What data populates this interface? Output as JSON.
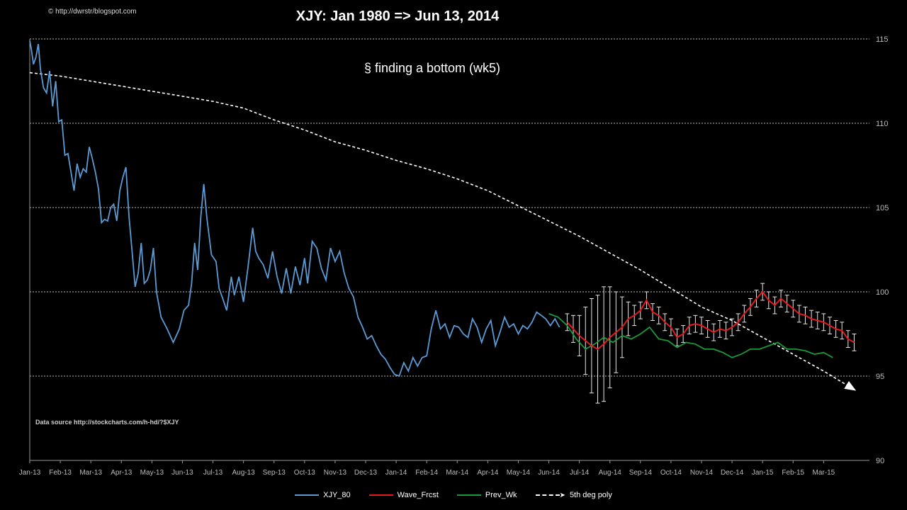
{
  "copyright": "© http://dwrstr/blogspot.com",
  "source_note": "Data source http://stockcharts.com/h-hd/?$XJY",
  "chart_data": {
    "type": "line",
    "title": "XJY: Jan 1980  => Jun 13, 2014",
    "subtitle": "§ finding a bottom  (wk5)",
    "ylim": [
      90,
      115
    ],
    "yticks": [
      90,
      95,
      100,
      105,
      110,
      115
    ],
    "grid": "horizontal dashed",
    "legend_position": "bottom",
    "x_labels": [
      "Jan-13",
      "Feb-13",
      "Mar-13",
      "Apr-13",
      "May-13",
      "Jun-13",
      "Jul-13",
      "Aug-13",
      "Sep-13",
      "Oct-13",
      "Nov-13",
      "Dec-13",
      "Jan-14",
      "Feb-14",
      "Mar-14",
      "Apr-14",
      "May-14",
      "Jun-14",
      "Jul-14",
      "Aug-14",
      "Sep-14",
      "Oct-14",
      "Nov-14",
      "Dec-14",
      "Jan-15",
      "Feb-15",
      "Mar-15"
    ],
    "x_label_months": [
      0,
      1,
      2,
      3,
      4,
      5,
      6,
      7,
      8,
      9,
      10,
      11,
      12,
      13,
      14,
      15,
      16,
      17,
      18,
      19,
      20,
      21,
      22,
      23,
      24,
      25,
      26
    ],
    "x_note": "x values are months since Jan-13 (0 = Jan-13)",
    "xlim": [
      0,
      27.5
    ],
    "series": [
      {
        "name": "XJY_80",
        "color": "#5b9bd5",
        "x": [
          0.0,
          0.05,
          0.12,
          0.2,
          0.28,
          0.35,
          0.45,
          0.55,
          0.65,
          0.75,
          0.85,
          0.95,
          1.05,
          1.15,
          1.25,
          1.35,
          1.45,
          1.55,
          1.65,
          1.75,
          1.85,
          1.95,
          2.05,
          2.15,
          2.25,
          2.35,
          2.45,
          2.55,
          2.65,
          2.75,
          2.85,
          2.95,
          3.05,
          3.15,
          3.25,
          3.35,
          3.45,
          3.55,
          3.65,
          3.75,
          3.85,
          3.95,
          4.05,
          4.15,
          4.3,
          4.5,
          4.7,
          4.9,
          5.05,
          5.2,
          5.3,
          5.4,
          5.5,
          5.6,
          5.7,
          5.8,
          5.95,
          6.1,
          6.2,
          6.3,
          6.45,
          6.6,
          6.7,
          6.85,
          7.0,
          7.15,
          7.3,
          7.4,
          7.5,
          7.65,
          7.8,
          7.95,
          8.1,
          8.25,
          8.4,
          8.55,
          8.7,
          8.85,
          9.0,
          9.1,
          9.25,
          9.4,
          9.55,
          9.7,
          9.85,
          10.0,
          10.15,
          10.3,
          10.45,
          10.6,
          10.75,
          10.9,
          11.05,
          11.2,
          11.35,
          11.5,
          11.65,
          11.8,
          11.95,
          12.1,
          12.25,
          12.4,
          12.55,
          12.7,
          12.85,
          13.0,
          13.15,
          13.3,
          13.45,
          13.6,
          13.75,
          13.9,
          14.05,
          14.2,
          14.35,
          14.5,
          14.65,
          14.8,
          14.95,
          15.1,
          15.25,
          15.4,
          15.55,
          15.7,
          15.85,
          16.0,
          16.15,
          16.3,
          16.45,
          16.6,
          16.75,
          16.9,
          17.05,
          17.2,
          17.35
        ],
        "values": [
          114.9,
          114.4,
          113.5,
          113.9,
          114.7,
          113.2,
          112.1,
          111.8,
          113.1,
          111.0,
          112.5,
          110.1,
          110.2,
          108.1,
          108.2,
          107.1,
          106.0,
          107.6,
          106.8,
          107.3,
          107.1,
          108.6,
          107.9,
          107.1,
          106.1,
          104.1,
          104.3,
          104.2,
          105.0,
          105.2,
          104.2,
          106.0,
          106.8,
          107.4,
          104.5,
          102.4,
          100.3,
          101.1,
          102.9,
          100.5,
          100.7,
          101.3,
          102.6,
          100.0,
          98.5,
          97.8,
          97.0,
          97.8,
          98.9,
          99.2,
          100.5,
          102.9,
          101.3,
          104.4,
          106.4,
          104.4,
          102.2,
          101.8,
          100.2,
          99.7,
          98.9,
          100.9,
          99.8,
          100.9,
          99.4,
          101.5,
          103.8,
          102.4,
          102.0,
          101.6,
          100.8,
          102.4,
          100.9,
          99.9,
          101.4,
          99.9,
          101.5,
          100.4,
          102.0,
          100.5,
          103.0,
          102.6,
          101.4,
          100.7,
          102.6,
          101.8,
          102.4,
          101.1,
          100.2,
          99.7,
          98.5,
          97.9,
          97.2,
          97.4,
          96.8,
          96.3,
          96.0,
          95.5,
          95.1,
          95.0,
          95.8,
          95.3,
          96.1,
          95.6,
          96.1,
          96.2,
          97.8,
          98.9,
          97.8,
          98.1,
          97.3,
          98.0,
          97.9,
          97.5,
          97.3,
          98.4,
          97.9,
          97.0,
          97.8,
          98.3,
          96.8,
          97.6,
          98.5,
          97.9,
          98.1,
          97.5,
          98.0,
          97.8,
          98.2,
          98.8,
          98.6,
          98.4,
          98.0,
          98.4,
          97.9
        ]
      },
      {
        "name": "Wave_Frcst",
        "color": "#e31a1c",
        "x": [
          17.6,
          17.8,
          18.0,
          18.2,
          18.4,
          18.6,
          18.8,
          19.0,
          19.2,
          19.4,
          19.6,
          19.8,
          20.0,
          20.2,
          20.4,
          20.6,
          20.8,
          21.0,
          21.2,
          21.4,
          21.6,
          21.8,
          22.0,
          22.2,
          22.4,
          22.6,
          22.8,
          23.0,
          23.2,
          23.4,
          23.6,
          23.8,
          24.0,
          24.2,
          24.4,
          24.6,
          24.8,
          25.0,
          25.2,
          25.4,
          25.6,
          25.8,
          26.0,
          26.2,
          26.4,
          26.6,
          26.8,
          27.0
        ],
        "values": [
          98.2,
          97.8,
          97.4,
          97.1,
          96.8,
          96.6,
          96.9,
          97.3,
          97.6,
          97.9,
          98.4,
          98.6,
          98.9,
          99.5,
          98.8,
          98.6,
          98.2,
          97.9,
          97.3,
          97.5,
          98.0,
          98.1,
          98.0,
          97.8,
          97.6,
          97.8,
          97.7,
          97.9,
          98.2,
          98.7,
          99.1,
          99.6,
          100.0,
          99.5,
          99.2,
          99.6,
          99.3,
          99.0,
          98.7,
          98.6,
          98.4,
          98.3,
          98.2,
          98.0,
          97.8,
          97.7,
          97.2,
          97.0
        ],
        "error": [
          0.5,
          0.8,
          1.2,
          2.0,
          2.8,
          3.2,
          3.4,
          3.0,
          2.4,
          1.8,
          1.0,
          0.6,
          0.5,
          0.5,
          0.5,
          0.5,
          0.5,
          0.5,
          0.5,
          0.5,
          0.5,
          0.5,
          0.5,
          0.5,
          0.5,
          0.5,
          0.5,
          0.5,
          0.5,
          0.5,
          0.5,
          0.5,
          0.5,
          0.5,
          0.5,
          0.5,
          0.5,
          0.5,
          0.5,
          0.5,
          0.5,
          0.5,
          0.5,
          0.5,
          0.5,
          0.5,
          0.5,
          0.5
        ]
      },
      {
        "name": "Prev_Wk",
        "color": "#1a9a3a",
        "x": [
          17.0,
          17.3,
          17.6,
          17.9,
          18.2,
          18.5,
          18.8,
          19.1,
          19.4,
          19.7,
          20.0,
          20.3,
          20.6,
          20.9,
          21.2,
          21.5,
          21.8,
          22.1,
          22.4,
          22.7,
          23.0,
          23.3,
          23.6,
          23.9,
          24.2,
          24.5,
          24.8,
          25.1,
          25.4,
          25.7,
          26.0,
          26.3
        ],
        "values": [
          98.7,
          98.5,
          98.0,
          97.2,
          96.6,
          96.9,
          97.3,
          97.0,
          97.4,
          97.2,
          97.5,
          97.9,
          97.2,
          97.1,
          96.7,
          97.0,
          96.9,
          96.6,
          96.6,
          96.4,
          96.1,
          96.3,
          96.6,
          96.6,
          96.8,
          97.0,
          96.6,
          96.6,
          96.5,
          96.3,
          96.4,
          96.1
        ]
      },
      {
        "name": "5th deg poly",
        "color": "#ffffff",
        "dashed": true,
        "x": [
          0.0,
          1.0,
          2.0,
          3.0,
          4.0,
          5.0,
          6.0,
          7.0,
          8.0,
          9.0,
          10.0,
          11.0,
          12.0,
          13.0,
          14.0,
          15.0,
          16.0,
          17.0,
          18.0,
          19.0,
          20.0,
          21.0,
          22.0,
          23.0,
          24.0,
          25.0,
          26.0,
          27.0
        ],
        "values": [
          113.0,
          112.8,
          112.5,
          112.2,
          111.9,
          111.6,
          111.3,
          110.9,
          110.2,
          109.6,
          108.9,
          108.4,
          107.8,
          107.3,
          106.7,
          106.0,
          105.1,
          104.2,
          103.3,
          102.3,
          101.3,
          100.2,
          99.1,
          98.3,
          97.3,
          96.3,
          95.3,
          94.2
        ]
      }
    ]
  }
}
